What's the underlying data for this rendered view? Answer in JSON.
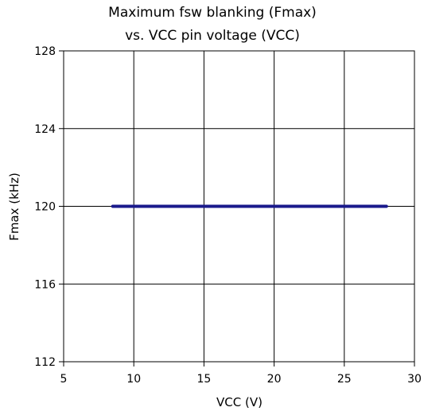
{
  "chart_data": {
    "type": "line",
    "title": [
      "Maximum fsw blanking (Fmax)",
      "vs. VCC pin voltage (VCC)"
    ],
    "xlabel": "VCC (V)",
    "ylabel": "Fmax (kHz)",
    "xlim": [
      5,
      30
    ],
    "ylim": [
      112,
      128
    ],
    "xticks": [
      5,
      10,
      15,
      20,
      25,
      30
    ],
    "yticks": [
      112,
      116,
      120,
      124,
      128
    ],
    "grid": true,
    "series": [
      {
        "x": [
          8.5,
          10,
          12,
          14,
          16,
          18,
          20,
          22,
          24,
          26,
          28
        ],
        "y": [
          120,
          120,
          120,
          120,
          120,
          120,
          120,
          120,
          120,
          120,
          120
        ],
        "color": "#1a1a8c"
      }
    ]
  }
}
